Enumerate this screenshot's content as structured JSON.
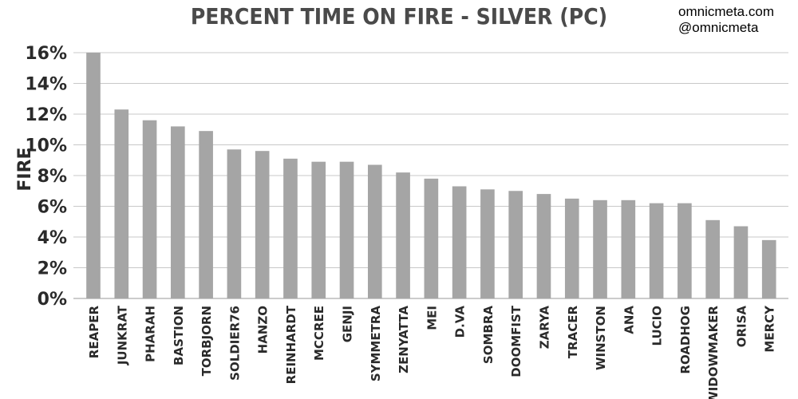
{
  "chart_data": {
    "type": "bar",
    "title": "PERCENT TIME ON FIRE - SILVER (PC)",
    "ylabel": "FIRE",
    "xlabel": "",
    "categories": [
      "REAPER",
      "JUNKRAT",
      "PHARAH",
      "BASTION",
      "TORBJORN",
      "SOLDIER76",
      "HANZO",
      "REINHARDT",
      "MCCREE",
      "GENJI",
      "SYMMETRA",
      "ZENYATTA",
      "MEI",
      "D.VA",
      "SOMBRA",
      "DOOMFIST",
      "ZARYA",
      "TRACER",
      "WINSTON",
      "ANA",
      "LUCIO",
      "ROADHOG",
      "WIDOWMAKER",
      "ORISA",
      "MERCY"
    ],
    "values": [
      16.0,
      12.3,
      11.6,
      11.2,
      10.9,
      9.7,
      9.6,
      9.1,
      8.9,
      8.9,
      8.7,
      8.2,
      7.8,
      7.3,
      7.1,
      7.0,
      6.8,
      6.5,
      6.4,
      6.4,
      6.2,
      6.2,
      5.1,
      4.7,
      3.8
    ],
    "ylim": [
      0,
      16
    ],
    "yticks": [
      0,
      2,
      4,
      6,
      8,
      10,
      12,
      14,
      16
    ],
    "ytick_format": "percent",
    "grid": true,
    "bar_color": "#a5a5a5"
  },
  "brand": {
    "site": "omnicmeta.com",
    "handle": "@omnicmeta"
  }
}
